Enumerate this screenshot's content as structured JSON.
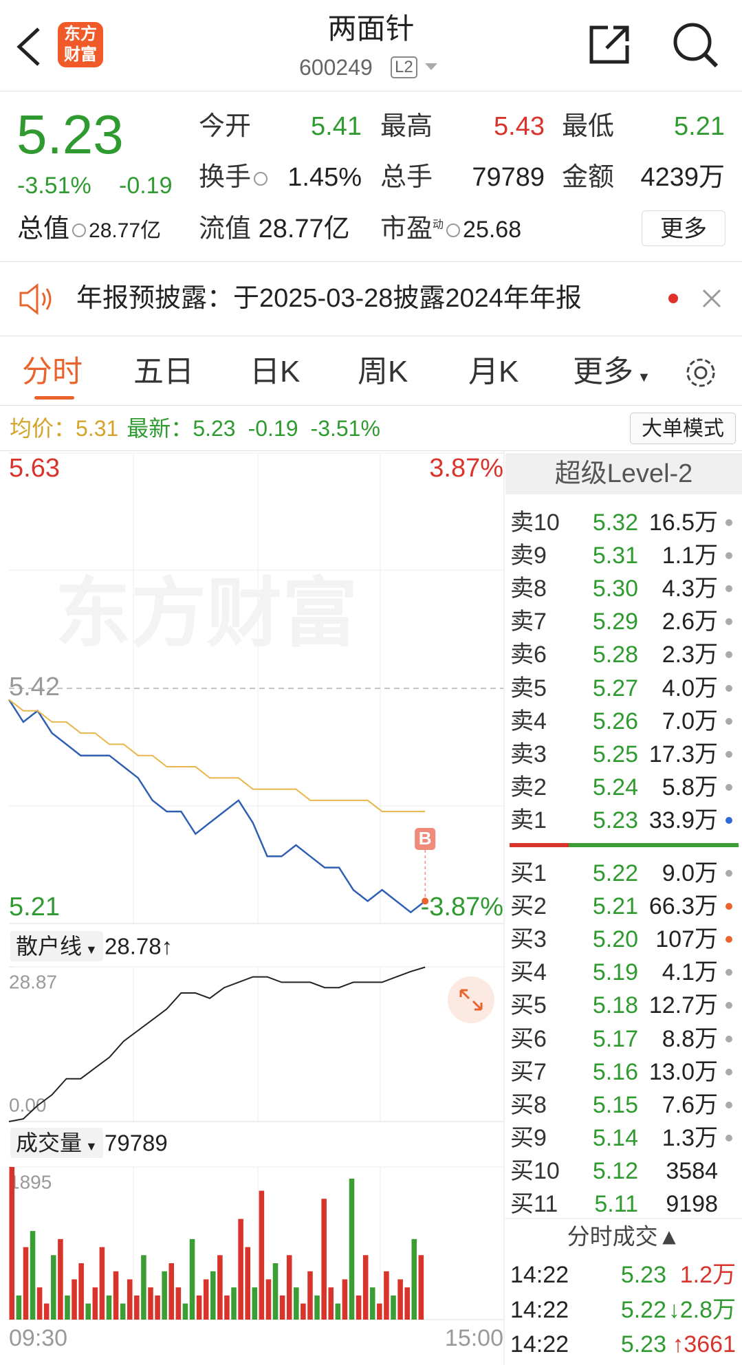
{
  "header": {
    "title": "两面针",
    "code": "600249",
    "level": "L2",
    "logo": [
      "东方",
      "财富"
    ]
  },
  "quote": {
    "price": "5.23",
    "change_pct": "-3.51%",
    "change": "-0.19",
    "stats": [
      {
        "label": "今开",
        "value": "5.41"
      },
      {
        "label": "最高",
        "value": "5.43"
      },
      {
        "label": "最低",
        "value": "5.21"
      },
      {
        "label": "换手",
        "value": "1.45%"
      },
      {
        "label": "总手",
        "value": "79789"
      },
      {
        "label": "金额",
        "value": "4239万"
      },
      {
        "label": "总值",
        "value": "28.77亿"
      },
      {
        "label": "流值",
        "value": "28.77亿"
      },
      {
        "label": "市盈",
        "sup": "动",
        "value": "25.68"
      }
    ],
    "more": "更多"
  },
  "notice": {
    "text": "年报预披露：于2025-03-28披露2024年年报"
  },
  "tabs": [
    "分时",
    "五日",
    "日K",
    "周K",
    "月K",
    "更多"
  ],
  "info": {
    "avg_label": "均价：",
    "avg": "5.31",
    "latest_label": "最新：",
    "latest": "5.23",
    "change": "-0.19",
    "change_pct": "-3.51%",
    "button": "大单模式"
  },
  "chart_data": [
    {
      "type": "line",
      "watermark": "东方财富",
      "marker": "B",
      "ylim": [
        5.21,
        5.63
      ],
      "yticks": [
        5.21,
        5.42,
        5.63
      ],
      "y2lim": [
        -3.87,
        3.87
      ],
      "y2ticks": [
        {
          "value": -3.87,
          "label": "-3.87%"
        },
        {
          "value": 3.87,
          "label": "3.87%"
        }
      ],
      "series": [
        {
          "color": "#2f5fb3",
          "values": [
            5.41,
            5.39,
            5.4,
            5.38,
            5.37,
            5.36,
            5.36,
            5.36,
            5.35,
            5.34,
            5.32,
            5.31,
            5.31,
            5.29,
            5.3,
            5.31,
            5.32,
            5.3,
            5.27,
            5.27,
            5.28,
            5.27,
            5.26,
            5.26,
            5.24,
            5.23,
            5.24,
            5.23,
            5.22,
            5.23
          ]
        },
        {
          "color": "#e8b64a",
          "values": [
            5.41,
            5.4,
            5.4,
            5.39,
            5.39,
            5.38,
            5.38,
            5.37,
            5.37,
            5.36,
            5.36,
            5.35,
            5.35,
            5.35,
            5.34,
            5.34,
            5.34,
            5.33,
            5.33,
            5.33,
            5.33,
            5.32,
            5.32,
            5.32,
            5.32,
            5.32,
            5.31,
            5.31,
            5.31,
            5.31
          ]
        }
      ]
    },
    {
      "type": "line",
      "title": "散户线",
      "current": "28.78↑",
      "ylim": [
        0,
        28.87
      ],
      "yticks": [
        {
          "value": 0,
          "label": "0.00"
        },
        28.87
      ],
      "series": [
        {
          "color": "#222",
          "values": [
            0,
            0.5,
            3,
            5,
            8,
            8,
            10,
            12,
            15,
            17,
            19,
            21,
            24,
            24,
            23,
            25,
            26,
            27,
            27,
            26,
            26,
            26,
            25,
            25,
            26,
            26,
            26,
            27,
            28,
            28.8
          ]
        }
      ]
    },
    {
      "type": "bar",
      "title": "成交量",
      "current": "79789",
      "ylim": [
        0,
        1895
      ],
      "yticks": [
        1895
      ],
      "x_labels": [
        "09:30",
        "15:00"
      ],
      "values": [
        1895,
        300,
        900,
        1100,
        400,
        200,
        800,
        1000,
        300,
        500,
        700,
        200,
        400,
        900,
        300,
        600,
        200,
        500,
        300,
        800,
        400,
        300,
        600,
        700,
        400,
        200,
        1000,
        300,
        500,
        600,
        800,
        300,
        400,
        1250,
        900,
        400,
        1600,
        500,
        700,
        300,
        800,
        400,
        200,
        600,
        300,
        1500,
        400,
        200,
        500,
        1750,
        300,
        800,
        400,
        200,
        600,
        300,
        500,
        400,
        1000,
        800
      ],
      "colors": [
        "#d9342b",
        "#3a9e35",
        "#d9342b",
        "#3a9e35",
        "#d9342b",
        "#d9342b",
        "#3a9e35",
        "#d9342b",
        "#3a9e35",
        "#d9342b",
        "#d9342b",
        "#3a9e35",
        "#d9342b",
        "#d9342b",
        "#3a9e35",
        "#d9342b",
        "#3a9e35",
        "#d9342b",
        "#d9342b",
        "#3a9e35",
        "#d9342b",
        "#d9342b",
        "#3a9e35",
        "#d9342b",
        "#d9342b",
        "#3a9e35",
        "#3a9e35",
        "#d9342b",
        "#d9342b",
        "#3a9e35",
        "#d9342b",
        "#d9342b",
        "#3a9e35",
        "#d9342b",
        "#d9342b",
        "#3a9e35",
        "#d9342b",
        "#d9342b",
        "#3a9e35",
        "#d9342b",
        "#d9342b",
        "#3a9e35",
        "#d9342b",
        "#d9342b",
        "#3a9e35",
        "#d9342b",
        "#d9342b",
        "#3a9e35",
        "#d9342b",
        "#3a9e35",
        "#d9342b",
        "#d9342b",
        "#3a9e35",
        "#d9342b",
        "#d9342b",
        "#3a9e35",
        "#d9342b",
        "#d9342b",
        "#3a9e35",
        "#d9342b"
      ]
    }
  ],
  "order_book": {
    "title": "超级Level-2",
    "asks": [
      {
        "label": "卖10",
        "price": "5.32",
        "vol": "16.5万",
        "dot": "#aaa"
      },
      {
        "label": "卖9",
        "price": "5.31",
        "vol": "1.1万",
        "dot": "#aaa"
      },
      {
        "label": "卖8",
        "price": "5.30",
        "vol": "4.3万",
        "dot": "#aaa"
      },
      {
        "label": "卖7",
        "price": "5.29",
        "vol": "2.6万",
        "dot": "#aaa"
      },
      {
        "label": "卖6",
        "price": "5.28",
        "vol": "2.3万",
        "dot": "#aaa"
      },
      {
        "label": "卖5",
        "price": "5.27",
        "vol": "4.0万",
        "dot": "#aaa"
      },
      {
        "label": "卖4",
        "price": "5.26",
        "vol": "7.0万",
        "dot": "#aaa"
      },
      {
        "label": "卖3",
        "price": "5.25",
        "vol": "17.3万",
        "dot": "#aaa"
      },
      {
        "label": "卖2",
        "price": "5.24",
        "vol": "5.8万",
        "dot": "#aaa"
      },
      {
        "label": "卖1",
        "price": "5.23",
        "vol": "33.9万",
        "dot": "#2f6ad9"
      }
    ],
    "bids": [
      {
        "label": "买1",
        "price": "5.22",
        "vol": "9.0万",
        "dot": "#aaa"
      },
      {
        "label": "买2",
        "price": "5.21",
        "vol": "66.3万",
        "dot": "#e8642c"
      },
      {
        "label": "买3",
        "price": "5.20",
        "vol": "107万",
        "dot": "#e8642c"
      },
      {
        "label": "买4",
        "price": "5.19",
        "vol": "4.1万",
        "dot": "#aaa"
      },
      {
        "label": "买5",
        "price": "5.18",
        "vol": "12.7万",
        "dot": "#aaa"
      },
      {
        "label": "买6",
        "price": "5.17",
        "vol": "8.8万",
        "dot": "#aaa"
      },
      {
        "label": "买7",
        "price": "5.16",
        "vol": "13.0万",
        "dot": "#aaa"
      },
      {
        "label": "买8",
        "price": "5.15",
        "vol": "7.6万",
        "dot": "#aaa"
      },
      {
        "label": "买9",
        "price": "5.14",
        "vol": "1.3万",
        "dot": "#aaa"
      },
      {
        "label": "买10",
        "price": "5.12",
        "vol": "3584"
      },
      {
        "label": "买11",
        "price": "5.11",
        "vol": "9198"
      }
    ]
  },
  "trades": {
    "title": "分时成交▲",
    "rows": [
      {
        "time": "14:22",
        "price": "5.23",
        "vol": "1.2万",
        "vol_color": "#d9342b"
      },
      {
        "time": "14:22",
        "price": "5.22",
        "vol": "↓2.8万",
        "vol_color": "#2f9a2f"
      },
      {
        "time": "14:22",
        "price": "5.23",
        "vol": "↑3661",
        "vol_color": "#d9342b"
      }
    ]
  }
}
